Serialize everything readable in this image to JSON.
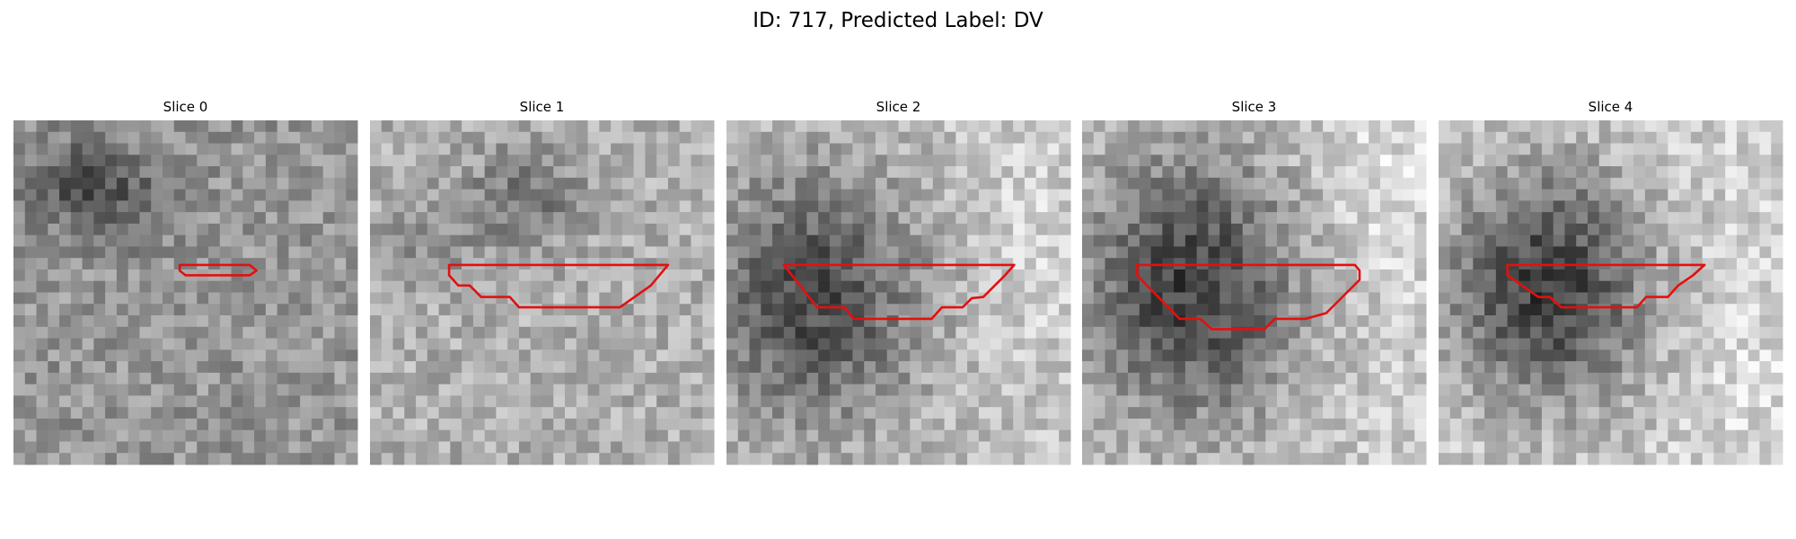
{
  "title": "ID: 717, Predicted Label: DV",
  "panels": [
    {
      "title": "Slice 0"
    },
    {
      "title": "Slice 1"
    },
    {
      "title": "Slice 2"
    },
    {
      "title": "Slice 3"
    },
    {
      "title": "Slice 4"
    }
  ]
}
